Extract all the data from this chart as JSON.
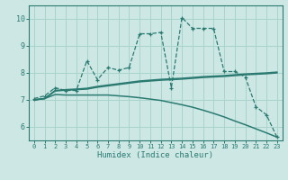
{
  "xlabel": "Humidex (Indice chaleur)",
  "bg_color": "#cde8e4",
  "grid_color": "#a8d4cc",
  "line_color": "#2a7a72",
  "xlim": [
    -0.5,
    23.5
  ],
  "ylim": [
    5.5,
    10.5
  ],
  "yticks": [
    6,
    7,
    8,
    9,
    10
  ],
  "xticks": [
    0,
    1,
    2,
    3,
    4,
    5,
    6,
    7,
    8,
    9,
    10,
    11,
    12,
    13,
    14,
    15,
    16,
    17,
    18,
    19,
    20,
    21,
    22,
    23
  ],
  "s1_x": [
    0,
    1,
    2,
    3,
    4,
    5,
    6,
    7,
    8,
    9,
    10,
    11,
    12,
    13,
    14,
    15,
    16,
    17,
    18,
    19,
    20,
    21,
    22,
    23
  ],
  "s1_y": [
    7.05,
    7.15,
    7.45,
    7.35,
    7.35,
    8.45,
    7.75,
    8.2,
    8.1,
    8.2,
    9.45,
    9.45,
    9.5,
    7.45,
    10.05,
    9.65,
    9.65,
    9.65,
    8.05,
    8.05,
    7.85,
    6.75,
    6.45,
    5.62
  ],
  "s2_x": [
    0,
    1,
    2,
    3,
    4,
    5,
    6,
    7,
    8,
    9,
    10,
    11,
    12,
    13,
    14,
    15,
    16,
    17,
    18,
    19,
    20,
    21,
    22,
    23
  ],
  "s2_y": [
    7.0,
    7.05,
    7.35,
    7.38,
    7.4,
    7.43,
    7.5,
    7.55,
    7.6,
    7.65,
    7.7,
    7.73,
    7.76,
    7.78,
    7.8,
    7.83,
    7.86,
    7.88,
    7.9,
    7.93,
    7.96,
    7.98,
    8.0,
    8.03
  ],
  "s3_x": [
    0,
    1,
    2,
    3,
    4,
    5,
    6,
    7,
    8,
    9,
    10,
    11,
    12,
    13,
    14,
    15,
    16,
    17,
    18,
    19,
    20,
    21,
    22,
    23
  ],
  "s3_y": [
    7.0,
    7.05,
    7.33,
    7.36,
    7.38,
    7.4,
    7.47,
    7.52,
    7.57,
    7.62,
    7.67,
    7.7,
    7.73,
    7.75,
    7.77,
    7.8,
    7.83,
    7.85,
    7.87,
    7.9,
    7.93,
    7.95,
    7.97,
    8.0
  ],
  "s4_x": [
    0,
    1,
    2,
    3,
    4,
    5,
    6,
    7,
    8,
    9,
    10,
    11,
    12,
    13,
    14,
    15,
    16,
    17,
    18,
    19,
    20,
    21,
    22,
    23
  ],
  "s4_y": [
    7.0,
    7.05,
    7.2,
    7.18,
    7.18,
    7.18,
    7.18,
    7.18,
    7.15,
    7.12,
    7.08,
    7.03,
    6.98,
    6.9,
    6.82,
    6.73,
    6.62,
    6.5,
    6.37,
    6.22,
    6.08,
    5.93,
    5.78,
    5.62
  ]
}
